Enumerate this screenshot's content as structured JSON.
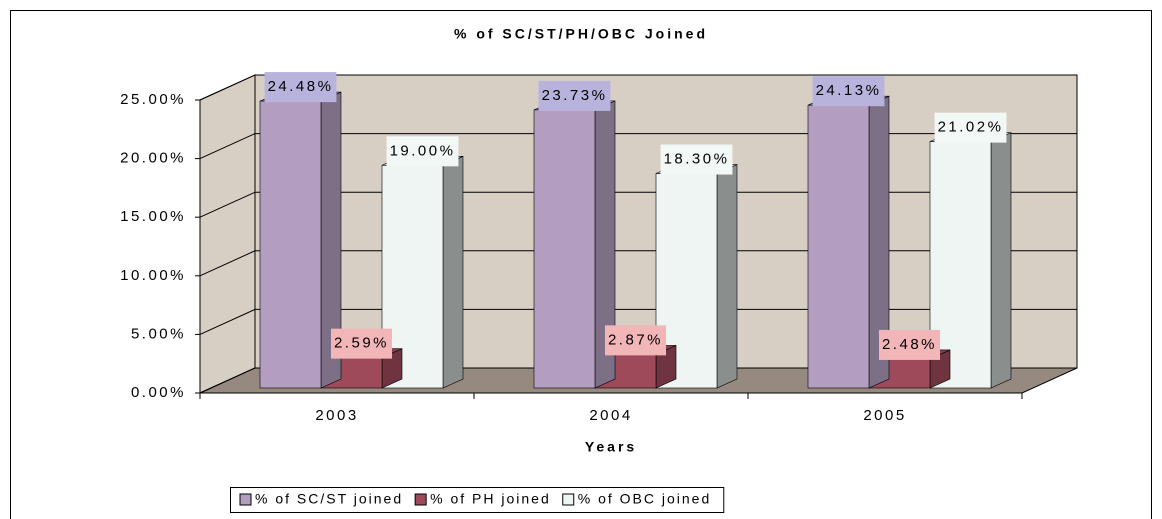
{
  "chart_data": {
    "type": "bar3d",
    "title": "% of SC/ST/PH/OBC Joined",
    "x_label": "Years",
    "categories": [
      "2003",
      "2004",
      "2005"
    ],
    "series": [
      {
        "name": "% of SC/ST joined",
        "color": "#b39ebf",
        "label_color": "#b8b3dc",
        "values": [
          24.48,
          23.73,
          24.13
        ],
        "value_labels": [
          "24.48%",
          "23.73%",
          "24.13%"
        ]
      },
      {
        "name": "% of PH joined",
        "color": "#9e4a5a",
        "label_color": "#f2b6b8",
        "values": [
          2.59,
          2.87,
          2.48
        ],
        "value_labels": [
          "2.59%",
          "2.87%",
          "2.48%"
        ]
      },
      {
        "name": "% of OBC joined",
        "color": "#eef5f2",
        "label_color": "#f2f8f5",
        "values": [
          19.0,
          18.3,
          21.02
        ],
        "value_labels": [
          "19.00%",
          "18.30%",
          "21.02%"
        ]
      }
    ],
    "ylim": [
      0,
      25
    ],
    "yticks": [
      {
        "value": 0,
        "label": "0.00%"
      },
      {
        "value": 5,
        "label": "5.00%"
      },
      {
        "value": 10,
        "label": "10.00%"
      },
      {
        "value": 15,
        "label": "15.00%"
      },
      {
        "value": 20,
        "label": "20.00%"
      },
      {
        "value": 25,
        "label": "25.00%"
      }
    ],
    "grid": true,
    "legend": "bottom"
  }
}
